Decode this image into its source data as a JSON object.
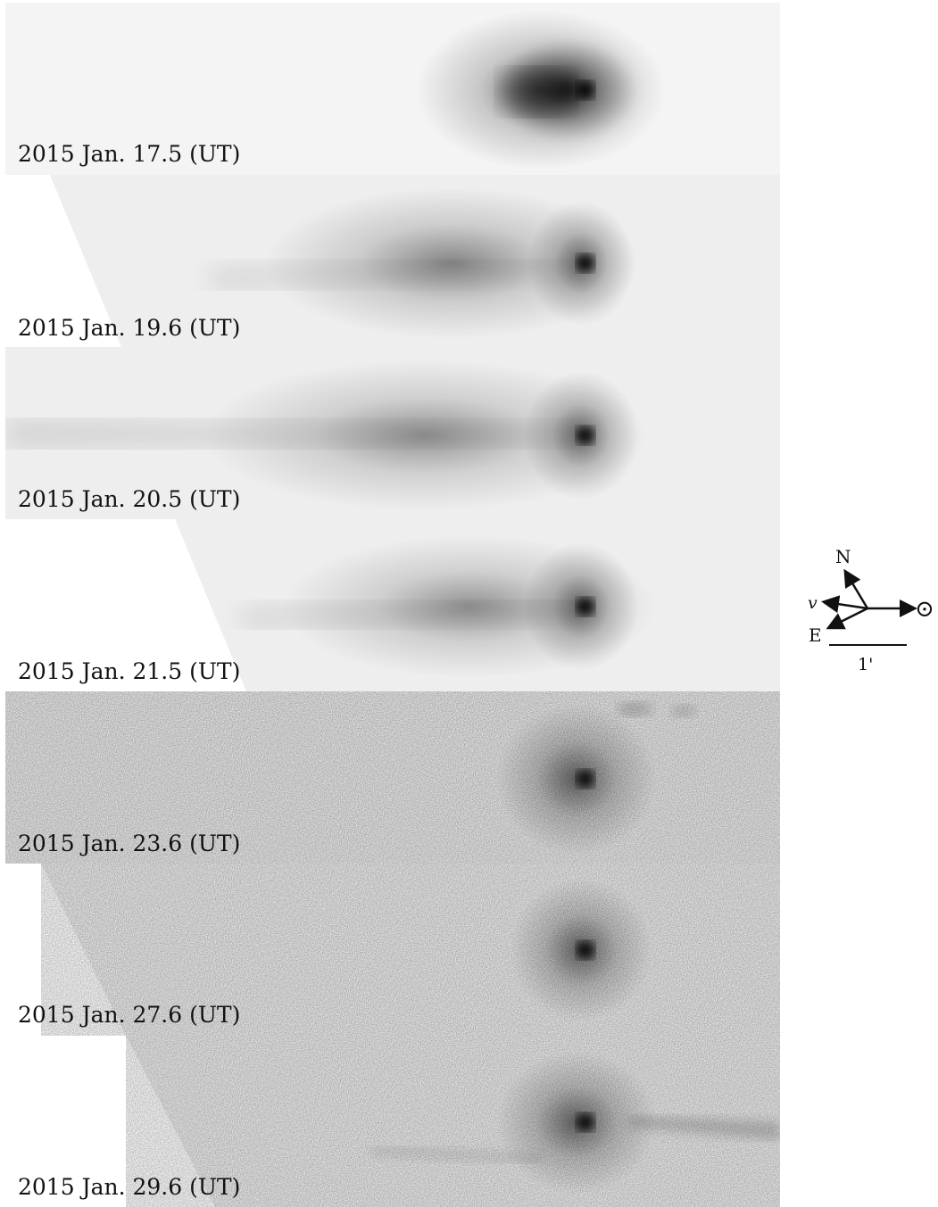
{
  "panels": [
    {
      "label": "2015 Jan. 17.5 (UT)"
    },
    {
      "label": "2015 Jan. 19.6 (UT)"
    },
    {
      "label": "2015 Jan. 20.5 (UT)"
    },
    {
      "label": "2015 Jan. 21.5 (UT)"
    },
    {
      "label": "2015 Jan. 23.6 (UT)"
    },
    {
      "label": "2015 Jan. 27.6 (UT)"
    },
    {
      "label": "2015 Jan. 29.6 (UT)"
    }
  ],
  "compass": {
    "north": "N",
    "east": "E",
    "velocity": "v",
    "sun_symbol": "⊙",
    "scale_label": "1'"
  }
}
